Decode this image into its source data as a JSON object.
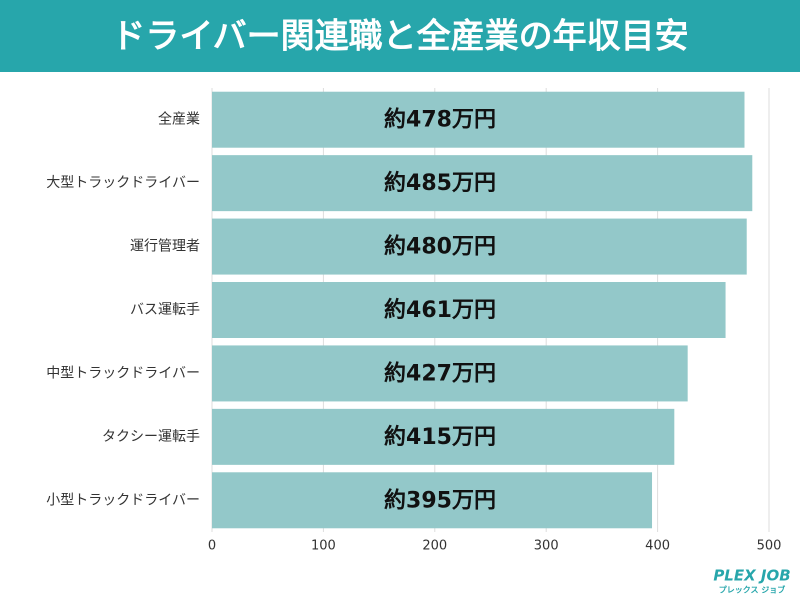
{
  "chart_data": {
    "type": "bar",
    "orientation": "horizontal",
    "title": "ドライバー関連職と全産業の年収目安",
    "categories": [
      "全産業",
      "大型トラックドライバー",
      "運行管理者",
      "バス運転手",
      "中型トラックドライバー",
      "タクシー運転手",
      "小型トラックドライバー"
    ],
    "values": [
      478,
      485,
      480,
      461,
      427,
      415,
      395
    ],
    "value_labels": [
      "約478万円",
      "約485万円",
      "約480万円",
      "約461万円",
      "約427万円",
      "約415万円",
      "約395万円"
    ],
    "color": "#93c8c9",
    "xlim": [
      0,
      500
    ],
    "xticks": [
      0,
      100,
      200,
      300,
      400,
      500
    ],
    "grid": true
  },
  "logo": {
    "name": "PLEX JOB",
    "tagline": "プレックス ジョブ"
  }
}
